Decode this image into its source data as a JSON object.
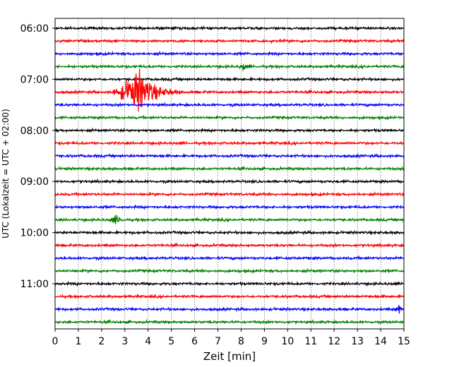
{
  "chart_data": {
    "type": "line",
    "title": "",
    "xlabel": "Zeit  [min]",
    "ylabel": "UTC (Lokalzeit = UTC + 02:00)",
    "xlim": [
      0,
      15
    ],
    "xticks": [
      0,
      1,
      2,
      3,
      4,
      5,
      6,
      7,
      8,
      9,
      10,
      11,
      12,
      13,
      14,
      15
    ],
    "xtick_labels": [
      "0",
      "1",
      "2",
      "3",
      "4",
      "5",
      "6",
      "7",
      "8",
      "9",
      "10",
      "11",
      "12",
      "13",
      "14",
      "15"
    ],
    "grid": "vertical dotted lines at each minute",
    "row_interval_minutes": 15,
    "ytick_labels": [
      "06:00",
      "07:00",
      "08:00",
      "09:00",
      "10:00",
      "11:00"
    ],
    "rows": [
      {
        "start": "06:00",
        "color": "#000000"
      },
      {
        "start": "06:15",
        "color": "#ff0000"
      },
      {
        "start": "06:30",
        "color": "#0000ff"
      },
      {
        "start": "06:45",
        "color": "#008000"
      },
      {
        "start": "07:00",
        "color": "#000000"
      },
      {
        "start": "07:15",
        "color": "#ff0000"
      },
      {
        "start": "07:30",
        "color": "#0000ff"
      },
      {
        "start": "07:45",
        "color": "#008000"
      },
      {
        "start": "08:00",
        "color": "#000000"
      },
      {
        "start": "08:15",
        "color": "#ff0000"
      },
      {
        "start": "08:30",
        "color": "#0000ff"
      },
      {
        "start": "08:45",
        "color": "#008000"
      },
      {
        "start": "09:00",
        "color": "#000000"
      },
      {
        "start": "09:15",
        "color": "#ff0000"
      },
      {
        "start": "09:30",
        "color": "#0000ff"
      },
      {
        "start": "09:45",
        "color": "#008000"
      },
      {
        "start": "10:00",
        "color": "#000000"
      },
      {
        "start": "10:15",
        "color": "#ff0000"
      },
      {
        "start": "10:30",
        "color": "#0000ff"
      },
      {
        "start": "10:45",
        "color": "#008000"
      },
      {
        "start": "11:00",
        "color": "#000000"
      },
      {
        "start": "11:15",
        "color": "#ff0000"
      },
      {
        "start": "11:30",
        "color": "#0000ff"
      },
      {
        "start": "11:45",
        "color": "#008000"
      }
    ],
    "events": [
      {
        "row": "07:15",
        "start_min": 2.3,
        "peak_min": 3.6,
        "end_min": 5.4,
        "amplitude": "large"
      },
      {
        "row": "09:45",
        "start_min": 2.2,
        "peak_min": 2.6,
        "end_min": 3.2,
        "amplitude": "small"
      },
      {
        "row": "06:45",
        "start_min": 7.9,
        "peak_min": 8.1,
        "end_min": 8.5,
        "amplitude": "small"
      },
      {
        "row": "11:30",
        "start_min": 14.5,
        "peak_min": 14.8,
        "end_min": 15.0,
        "amplitude": "small"
      }
    ]
  }
}
